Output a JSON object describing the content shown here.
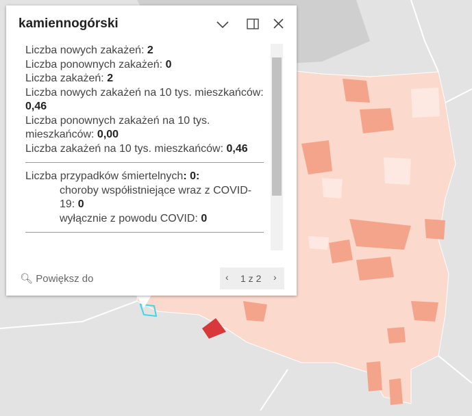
{
  "popup": {
    "title": "kamiennogórski",
    "fields": [
      {
        "label": "Liczba nowych zakażeń: ",
        "value": "2"
      },
      {
        "label": "Liczba ponownych zakażeń: ",
        "value": "0"
      },
      {
        "label": "Liczba zakażeń: ",
        "value": "2"
      },
      {
        "label": "Liczba nowych zakażeń na 10 tys. mieszkańców: ",
        "value": "0,46"
      },
      {
        "label": "Liczba ponownych zakażeń na 10 tys. mieszkańców: ",
        "value": "0,00"
      },
      {
        "label": "Liczba zakażeń na 10 tys. mieszkańców: ",
        "value": "0,46"
      }
    ],
    "deaths": {
      "label": "Liczba przypadków śmiertelnych",
      "value": ": 0:"
    },
    "death_fields": [
      {
        "label": "choroby współistniejące wraz z COVID-19: ",
        "value": "0"
      },
      {
        "label": "wyłącznie z powodu COVID: ",
        "value": "0"
      }
    ],
    "zoom": "Powiększ do",
    "pager": "1 z 2"
  }
}
